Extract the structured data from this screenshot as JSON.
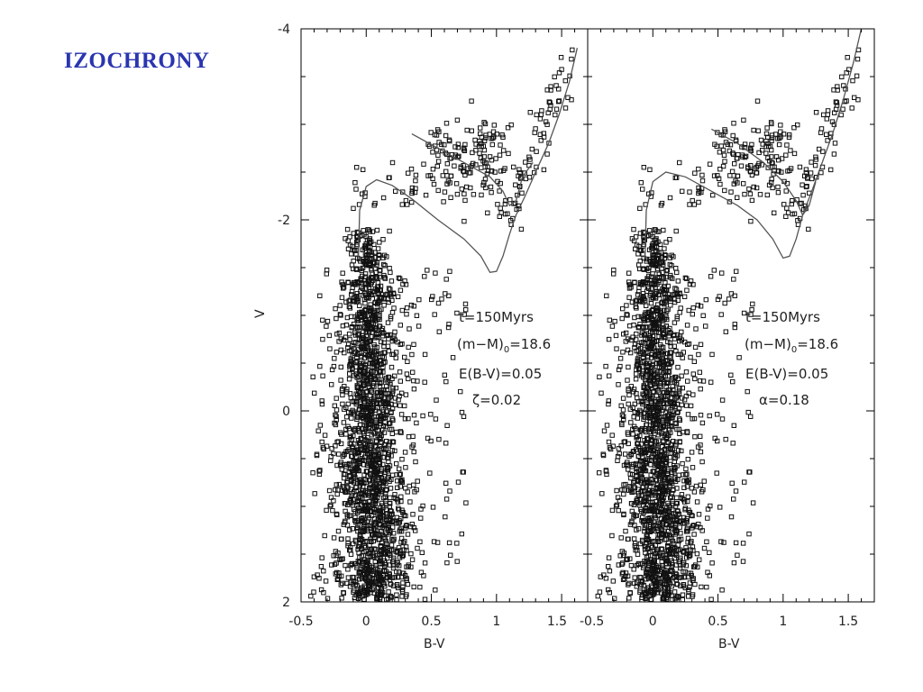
{
  "slide": {
    "title": "IZOCHRONY"
  },
  "chart_data": {
    "type": "scatter",
    "ylabel": "V",
    "xlabel": "B-V",
    "ylim": [
      2,
      -4
    ],
    "y_axis_inverted": true,
    "y_ticks": [
      -4,
      -2,
      0,
      2
    ],
    "y_tick_labels": [
      "-4",
      "-2",
      "0",
      "2"
    ],
    "panels": [
      {
        "xlim": [
          -0.5,
          1.7
        ],
        "x_ticks": [
          -0.5,
          0,
          0.5,
          1,
          1.5
        ],
        "x_tick_labels": [
          "-0.5",
          "0",
          "0.5",
          "1",
          "1.5"
        ],
        "annotations": {
          "age": "t=150Myrs",
          "distance": "(m−M)",
          "distance_sub": "0",
          "distance_val": "=18.6",
          "reddening": "E(B-V)=0.05",
          "param": "ζ=0.02"
        },
        "isochrone": [
          [
            -0.06,
            -1.6
          ],
          [
            -0.05,
            -2.1
          ],
          [
            0.0,
            -2.35
          ],
          [
            0.08,
            -2.42
          ],
          [
            0.2,
            -2.36
          ],
          [
            0.35,
            -2.22
          ],
          [
            0.55,
            -2.0
          ],
          [
            0.75,
            -1.8
          ],
          [
            0.88,
            -1.62
          ],
          [
            0.95,
            -1.45
          ],
          [
            1.0,
            -1.46
          ],
          [
            1.05,
            -1.62
          ],
          [
            1.1,
            -1.85
          ],
          [
            1.15,
            -2.05
          ],
          [
            1.22,
            -2.25
          ],
          [
            1.3,
            -2.5
          ],
          [
            1.4,
            -2.8
          ],
          [
            1.48,
            -3.1
          ],
          [
            1.56,
            -3.45
          ],
          [
            1.62,
            -3.8
          ]
        ],
        "blue_loop": [
          [
            0.35,
            -2.9
          ],
          [
            0.55,
            -2.75
          ],
          [
            0.75,
            -2.6
          ],
          [
            0.95,
            -2.45
          ],
          [
            1.05,
            -2.3
          ],
          [
            1.1,
            -2.15
          ],
          [
            1.15,
            -2.2
          ],
          [
            1.2,
            -2.45
          ],
          [
            1.28,
            -2.6
          ]
        ]
      },
      {
        "xlim": [
          -0.5,
          1.7
        ],
        "x_ticks": [
          -0.5,
          0,
          0.5,
          1,
          1.5
        ],
        "x_tick_labels": [
          "-0.5",
          "0",
          "0.5",
          "1",
          "1.5"
        ],
        "annotations": {
          "age": "t=150Myrs",
          "distance": "(m−M)",
          "distance_sub": "0",
          "distance_val": "=18.6",
          "reddening": "E(B-V)=0.05",
          "param": "α=0.18"
        },
        "isochrone": [
          [
            -0.06,
            -1.6
          ],
          [
            -0.05,
            -2.1
          ],
          [
            0.0,
            -2.4
          ],
          [
            0.1,
            -2.5
          ],
          [
            0.25,
            -2.45
          ],
          [
            0.45,
            -2.3
          ],
          [
            0.65,
            -2.15
          ],
          [
            0.8,
            -2.0
          ],
          [
            0.92,
            -1.8
          ],
          [
            1.0,
            -1.6
          ],
          [
            1.05,
            -1.62
          ],
          [
            1.1,
            -1.8
          ],
          [
            1.15,
            -2.05
          ],
          [
            1.22,
            -2.3
          ],
          [
            1.3,
            -2.6
          ],
          [
            1.38,
            -2.9
          ],
          [
            1.46,
            -3.25
          ],
          [
            1.54,
            -3.65
          ],
          [
            1.6,
            -4.0
          ]
        ],
        "blue_loop": [
          [
            0.45,
            -2.95
          ],
          [
            0.65,
            -2.8
          ],
          [
            0.85,
            -2.6
          ],
          [
            1.0,
            -2.4
          ],
          [
            1.1,
            -2.2
          ],
          [
            1.15,
            -2.05
          ],
          [
            1.2,
            -2.15
          ],
          [
            1.25,
            -2.4
          ]
        ]
      }
    ]
  }
}
